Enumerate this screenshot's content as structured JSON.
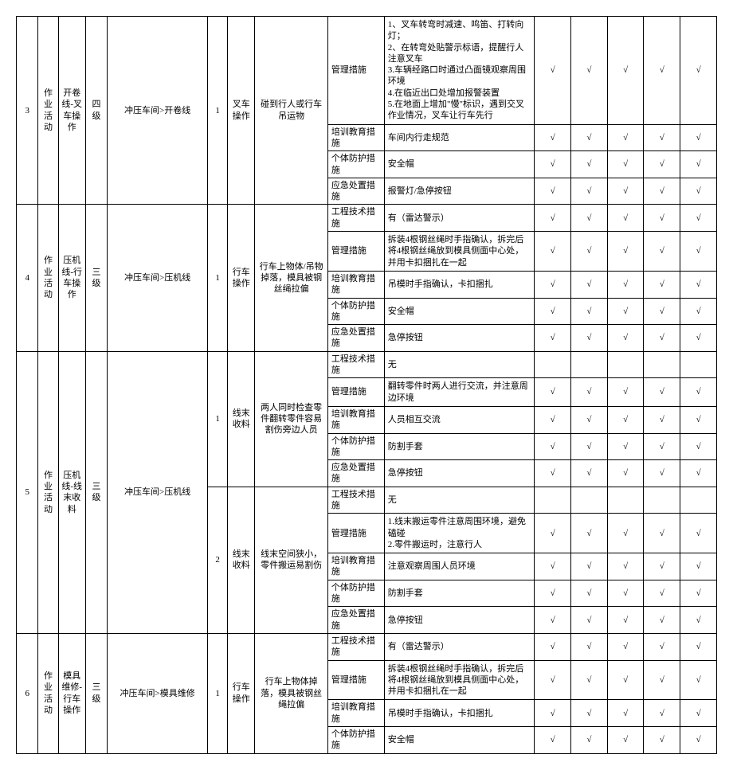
{
  "check": "√",
  "rows": [
    {
      "idx": "3",
      "activity": "作业活动",
      "name": "开卷线-叉车操作",
      "level": "四级",
      "location": "冲压车间>开卷线",
      "sub": "1",
      "op": "叉车操作",
      "hazard": "碰到行人或行车吊运物",
      "measures": [
        {
          "type": "管理措施",
          "desc": "1、叉车转弯时减速、鸣笛、打转向灯；\n2、在转弯处贴警示标语，提醒行人注意叉车\n3.车辆经路口时通过凸面镜观察周围环境\n4.在临近出口处增加报警装置\n5.在地面上增加\"慢\"标识，遇到交叉作业情况，叉车让行车先行",
          "c": [
            1,
            1,
            1,
            1,
            1
          ]
        },
        {
          "type": "培训教育措施",
          "desc": "车间内行走规范",
          "c": [
            1,
            1,
            1,
            1,
            1
          ]
        },
        {
          "type": "个体防护措施",
          "desc": "安全帽",
          "c": [
            1,
            1,
            1,
            1,
            1
          ]
        },
        {
          "type": "应急处置措施",
          "desc": "报警灯/急停按钮",
          "c": [
            1,
            1,
            1,
            1,
            1
          ]
        }
      ]
    },
    {
      "idx": "4",
      "activity": "作业活动",
      "name": "压机线-行车操作",
      "level": "三级",
      "location": "冲压车间>压机线",
      "sub": "1",
      "op": "行车操作",
      "hazard": "行车上物体/吊物掉落，模具被钢丝绳拉偏",
      "measures": [
        {
          "type": "工程技术措施",
          "desc": "有（雷达警示）",
          "c": [
            1,
            1,
            1,
            1,
            1
          ]
        },
        {
          "type": "管理措施",
          "desc": "拆装4根钢丝绳时手指确认，拆完后将4根钢丝绳放到模具侧面中心处，并用卡扣捆扎在一起",
          "c": [
            1,
            1,
            1,
            1,
            1
          ]
        },
        {
          "type": "培训教育措施",
          "desc": "吊模时手指确认，卡扣捆扎",
          "c": [
            1,
            1,
            1,
            1,
            1
          ]
        },
        {
          "type": "个体防护措施",
          "desc": "安全帽",
          "c": [
            1,
            1,
            1,
            1,
            1
          ]
        },
        {
          "type": "应急处置措施",
          "desc": "急停按钮",
          "c": [
            1,
            1,
            1,
            1,
            1
          ]
        }
      ]
    },
    {
      "idx": "5",
      "activity": "作业活动",
      "name": "压机线-线末收料",
      "level": "三级",
      "location": "冲压车间>压机线",
      "subs": [
        {
          "sub": "1",
          "op": "线末收料",
          "hazard": "两人同时检查零件翻转零件容易割伤旁边人员",
          "measures": [
            {
              "type": "工程技术措施",
              "desc": "无",
              "c": [
                0,
                0,
                0,
                0,
                0
              ]
            },
            {
              "type": "管理措施",
              "desc": "翻转零件时两人进行交流，并注意周边环境",
              "c": [
                1,
                1,
                1,
                1,
                1
              ]
            },
            {
              "type": "培训教育措施",
              "desc": "人员相互交流",
              "c": [
                1,
                1,
                1,
                1,
                1
              ]
            },
            {
              "type": "个体防护措施",
              "desc": "防割手套",
              "c": [
                1,
                1,
                1,
                1,
                1
              ]
            },
            {
              "type": "应急处置措施",
              "desc": "急停按钮",
              "c": [
                1,
                1,
                1,
                1,
                1
              ]
            }
          ]
        },
        {
          "sub": "2",
          "op": "线末收料",
          "hazard": "线末空间狭小，零件搬运易割伤",
          "measures": [
            {
              "type": "工程技术措施",
              "desc": "无",
              "c": [
                0,
                0,
                0,
                0,
                0
              ]
            },
            {
              "type": "管理措施",
              "desc": "1.线末搬运零件注意周围环境，避免磕碰\n2.零件搬运时，注意行人",
              "c": [
                1,
                1,
                1,
                1,
                1
              ]
            },
            {
              "type": "培训教育措施",
              "desc": "注意观察周围人员环境",
              "c": [
                1,
                1,
                1,
                1,
                1
              ]
            },
            {
              "type": "个体防护措施",
              "desc": "防割手套",
              "c": [
                1,
                1,
                1,
                1,
                1
              ]
            },
            {
              "type": "应急处置措施",
              "desc": "急停按钮",
              "c": [
                1,
                1,
                1,
                1,
                1
              ]
            }
          ]
        }
      ]
    },
    {
      "idx": "6",
      "activity": "作业活动",
      "name": "模具维修-行车操作",
      "level": "三级",
      "location": "冲压车间>模具维修",
      "sub": "1",
      "op": "行车操作",
      "hazard": "行车上物体掉落，模具被钢丝绳拉偏",
      "measures": [
        {
          "type": "工程技术措施",
          "desc": "有（雷达警示）",
          "c": [
            1,
            1,
            1,
            1,
            1
          ]
        },
        {
          "type": "管理措施",
          "desc": "拆装4根钢丝绳时手指确认，拆完后将4根钢丝绳放到模具侧面中心处，并用卡扣捆扎在一起",
          "c": [
            1,
            1,
            1,
            1,
            1
          ]
        },
        {
          "type": "培训教育措施",
          "desc": "吊模时手指确认，卡扣捆扎",
          "c": [
            1,
            1,
            1,
            1,
            1
          ]
        },
        {
          "type": "个体防护措施",
          "desc": "安全帽",
          "c": [
            1,
            1,
            1,
            1,
            1
          ]
        }
      ]
    }
  ]
}
